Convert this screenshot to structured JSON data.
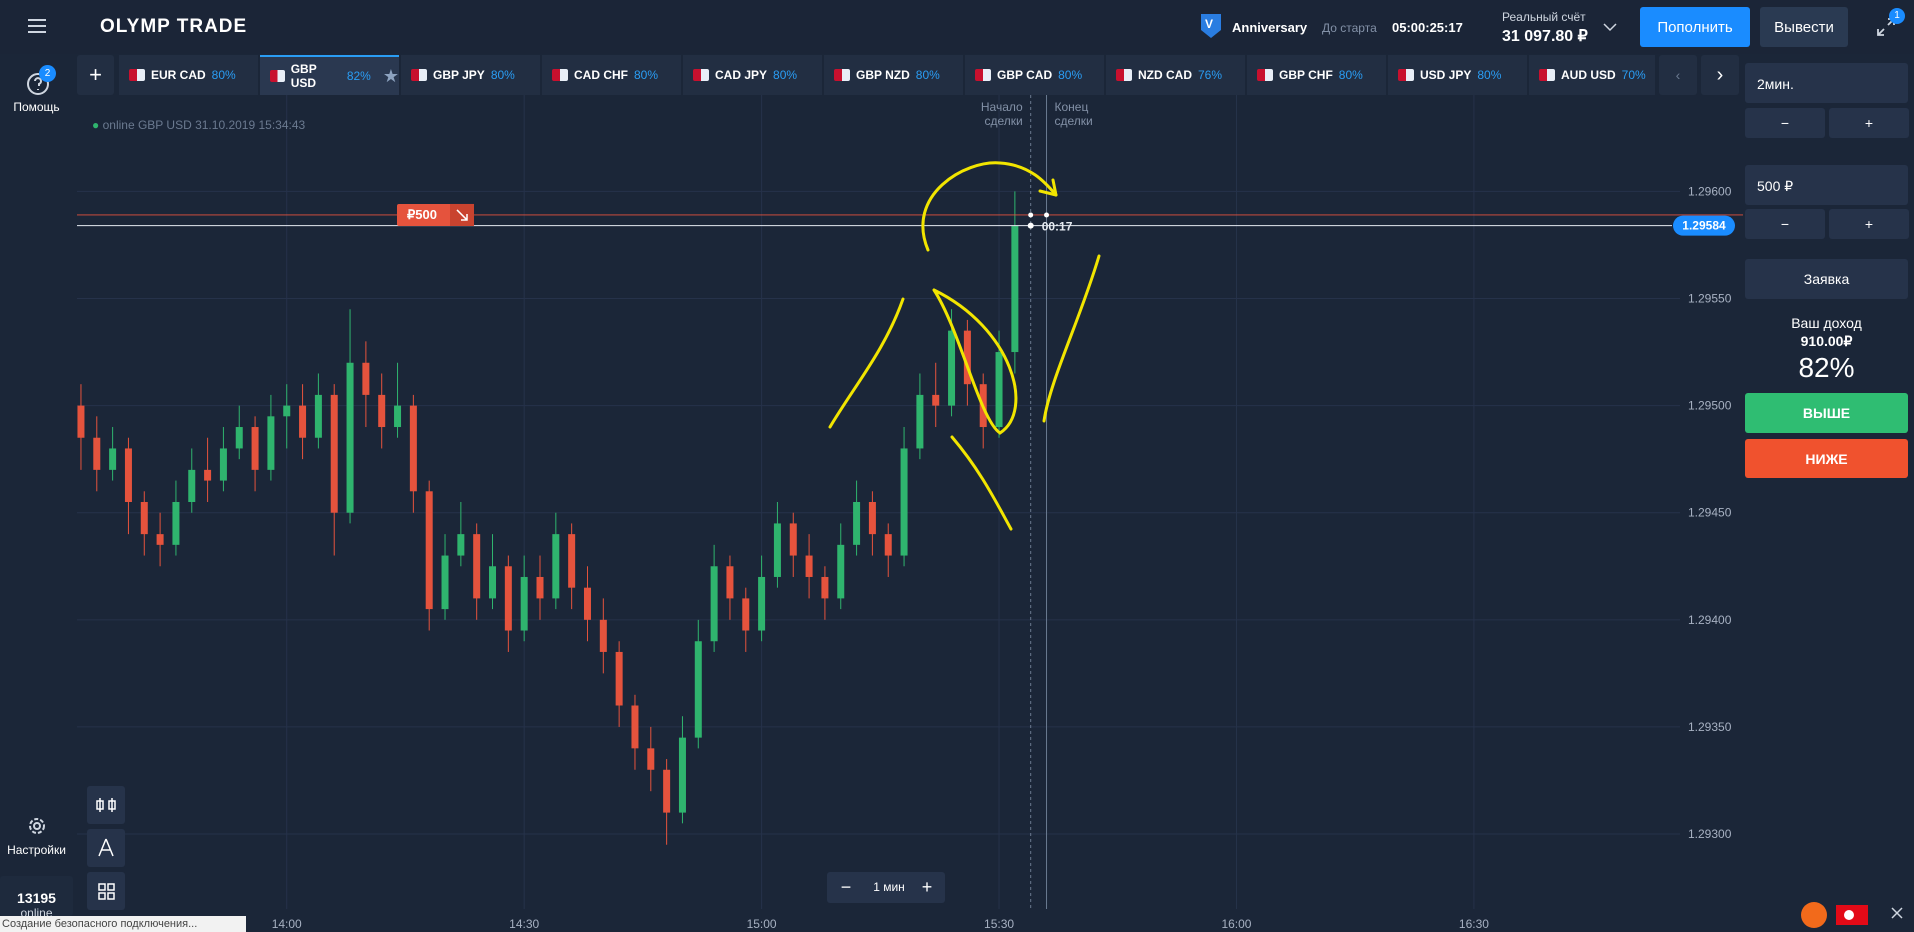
{
  "header": {
    "logo": "OLYMP TRADE",
    "tournament": {
      "badge": "V",
      "name": "Anniversary",
      "start_label": "До старта",
      "countdown": "05:00:25:17"
    },
    "account": {
      "label": "Реальный счёт",
      "balance": "31 097.80 ₽"
    },
    "deposit_button": "Пополнить",
    "withdraw_button": "Вывести",
    "notification_count": "1"
  },
  "sidebar": {
    "help": {
      "badge": "2",
      "label": "Помощь"
    },
    "settings": "Настройки",
    "online": {
      "count": "13195",
      "label": "online"
    }
  },
  "tabs": [
    {
      "pair": "EUR CAD",
      "payout": "80%"
    },
    {
      "pair": "GBP USD",
      "payout": "82%"
    },
    {
      "pair": "GBP JPY",
      "payout": "80%"
    },
    {
      "pair": "CAD CHF",
      "payout": "80%"
    },
    {
      "pair": "CAD JPY",
      "payout": "80%"
    },
    {
      "pair": "GBP NZD",
      "payout": "80%"
    },
    {
      "pair": "GBP CAD",
      "payout": "80%"
    },
    {
      "pair": "NZD CAD",
      "payout": "76%"
    },
    {
      "pair": "GBP CHF",
      "payout": "80%"
    },
    {
      "pair": "USD JPY",
      "payout": "80%"
    },
    {
      "pair": "AUD USD",
      "payout": "70%"
    }
  ],
  "active_tab": 1,
  "chart_info": "online GBP USD 31.10.2019 15:34:43",
  "chart_data": {
    "type": "candlestick",
    "x": [
      814,
      816,
      818,
      820,
      822,
      824,
      826,
      828,
      830,
      832,
      834,
      836,
      838,
      840,
      842,
      844,
      846,
      848,
      850,
      852,
      854,
      856,
      858,
      860,
      862,
      864,
      866,
      868,
      870,
      872,
      874,
      876,
      878,
      880,
      882,
      884,
      886,
      888,
      890,
      892,
      894,
      896,
      898,
      900,
      902,
      904,
      906,
      908,
      910,
      912,
      914,
      916,
      918,
      920,
      922,
      924,
      926,
      928,
      930,
      932
    ],
    "open": [
      1.295,
      1.29485,
      1.2947,
      1.2948,
      1.29455,
      1.2944,
      1.29435,
      1.29455,
      1.2947,
      1.29465,
      1.2948,
      1.2949,
      1.2947,
      1.29495,
      1.295,
      1.29485,
      1.29505,
      1.2945,
      1.2952,
      1.29505,
      1.2949,
      1.295,
      1.2946,
      1.29405,
      1.2943,
      1.2944,
      1.2941,
      1.29425,
      1.29395,
      1.2942,
      1.2941,
      1.2944,
      1.29415,
      1.294,
      1.29385,
      1.2936,
      1.2934,
      1.2933,
      1.2931,
      1.29345,
      1.2939,
      1.29425,
      1.2941,
      1.29395,
      1.2942,
      1.29445,
      1.2943,
      1.2942,
      1.2941,
      1.29435,
      1.29455,
      1.2944,
      1.2943,
      1.2948,
      1.29505,
      1.295,
      1.29535,
      1.2951,
      1.2949,
      1.29525
    ],
    "high": [
      1.2951,
      1.29495,
      1.2949,
      1.29485,
      1.2946,
      1.2945,
      1.29465,
      1.2948,
      1.29485,
      1.2949,
      1.295,
      1.29495,
      1.29505,
      1.2951,
      1.2951,
      1.29515,
      1.2951,
      1.29545,
      1.2953,
      1.29515,
      1.2952,
      1.29505,
      1.29465,
      1.2944,
      1.29455,
      1.29445,
      1.2944,
      1.2943,
      1.2943,
      1.2943,
      1.2945,
      1.29445,
      1.29425,
      1.2941,
      1.2939,
      1.29365,
      1.2935,
      1.29335,
      1.29355,
      1.294,
      1.29435,
      1.2943,
      1.29415,
      1.2943,
      1.29455,
      1.2945,
      1.2944,
      1.29425,
      1.29445,
      1.29465,
      1.2946,
      1.29445,
      1.2949,
      1.29515,
      1.2952,
      1.29545,
      1.2954,
      1.29515,
      1.29535,
      1.296
    ],
    "low": [
      1.2947,
      1.2946,
      1.29465,
      1.2944,
      1.2943,
      1.29425,
      1.2943,
      1.2945,
      1.29455,
      1.2946,
      1.29475,
      1.2946,
      1.29465,
      1.2948,
      1.29475,
      1.2948,
      1.2943,
      1.29445,
      1.2949,
      1.2948,
      1.29485,
      1.2945,
      1.29395,
      1.294,
      1.29425,
      1.294,
      1.29405,
      1.29385,
      1.2939,
      1.294,
      1.29405,
      1.29405,
      1.2939,
      1.29375,
      1.2935,
      1.2933,
      1.2932,
      1.29295,
      1.29305,
      1.2934,
      1.29385,
      1.294,
      1.29385,
      1.2939,
      1.29415,
      1.2942,
      1.2941,
      1.294,
      1.29405,
      1.2943,
      1.2943,
      1.2942,
      1.29425,
      1.29475,
      1.2949,
      1.29495,
      1.295,
      1.2948,
      1.29485,
      1.29515
    ],
    "close": [
      1.29485,
      1.2947,
      1.2948,
      1.29455,
      1.2944,
      1.29435,
      1.29455,
      1.2947,
      1.29465,
      1.2948,
      1.2949,
      1.2947,
      1.29495,
      1.295,
      1.29485,
      1.29505,
      1.2945,
      1.2952,
      1.29505,
      1.2949,
      1.295,
      1.2946,
      1.29405,
      1.2943,
      1.2944,
      1.2941,
      1.29425,
      1.29395,
      1.2942,
      1.2941,
      1.2944,
      1.29415,
      1.294,
      1.29385,
      1.2936,
      1.2934,
      1.2933,
      1.2931,
      1.29345,
      1.2939,
      1.29425,
      1.2941,
      1.29395,
      1.2942,
      1.29445,
      1.2943,
      1.2942,
      1.2941,
      1.29435,
      1.29455,
      1.2944,
      1.2943,
      1.2948,
      1.29505,
      1.295,
      1.29535,
      1.2951,
      1.2949,
      1.29525,
      1.29584
    ],
    "up_color": "#2fb46e",
    "down_color": "#e5533d",
    "grid": true,
    "xlim": [
      813.5,
      1024
    ],
    "ylim": [
      1.29265,
      1.29645
    ],
    "xticks": [
      {
        "value": 840,
        "label": "14:00"
      },
      {
        "value": 870,
        "label": "14:30"
      },
      {
        "value": 900,
        "label": "15:00"
      },
      {
        "value": 930,
        "label": "15:30"
      },
      {
        "value": 960,
        "label": "16:00"
      },
      {
        "value": 990,
        "label": "16:30"
      }
    ],
    "yticks": [
      {
        "value": 1.296,
        "label": "1.29600"
      },
      {
        "value": 1.2955,
        "label": "1.29550"
      },
      {
        "value": 1.295,
        "label": "1.29500"
      },
      {
        "value": 1.2945,
        "label": "1.29450"
      },
      {
        "value": 1.294,
        "label": "1.29400"
      },
      {
        "value": 1.2935,
        "label": "1.29350"
      },
      {
        "value": 1.293,
        "label": "1.29300"
      }
    ],
    "current_price": {
      "value": 1.29584,
      "label": "1.29584"
    },
    "trade": {
      "amount": "₽500",
      "price": 1.29589,
      "timer": "00:17"
    },
    "markers": [
      {
        "label": [
          "Начало",
          "сделки"
        ],
        "x": 934
      },
      {
        "label": [
          "Конец",
          "сделки"
        ],
        "x": 936
      }
    ]
  },
  "timeframe": "1 мин",
  "trade_panel": {
    "duration": "2мин.",
    "amount": "500 ₽",
    "order_button": "Заявка",
    "income_label": "Ваш доход",
    "income": "910.00₽",
    "payout": "82%",
    "up_button": "ВЫШЕ",
    "down_button": "НИЖЕ"
  },
  "status_bar": "Создание безопасного подключения..."
}
